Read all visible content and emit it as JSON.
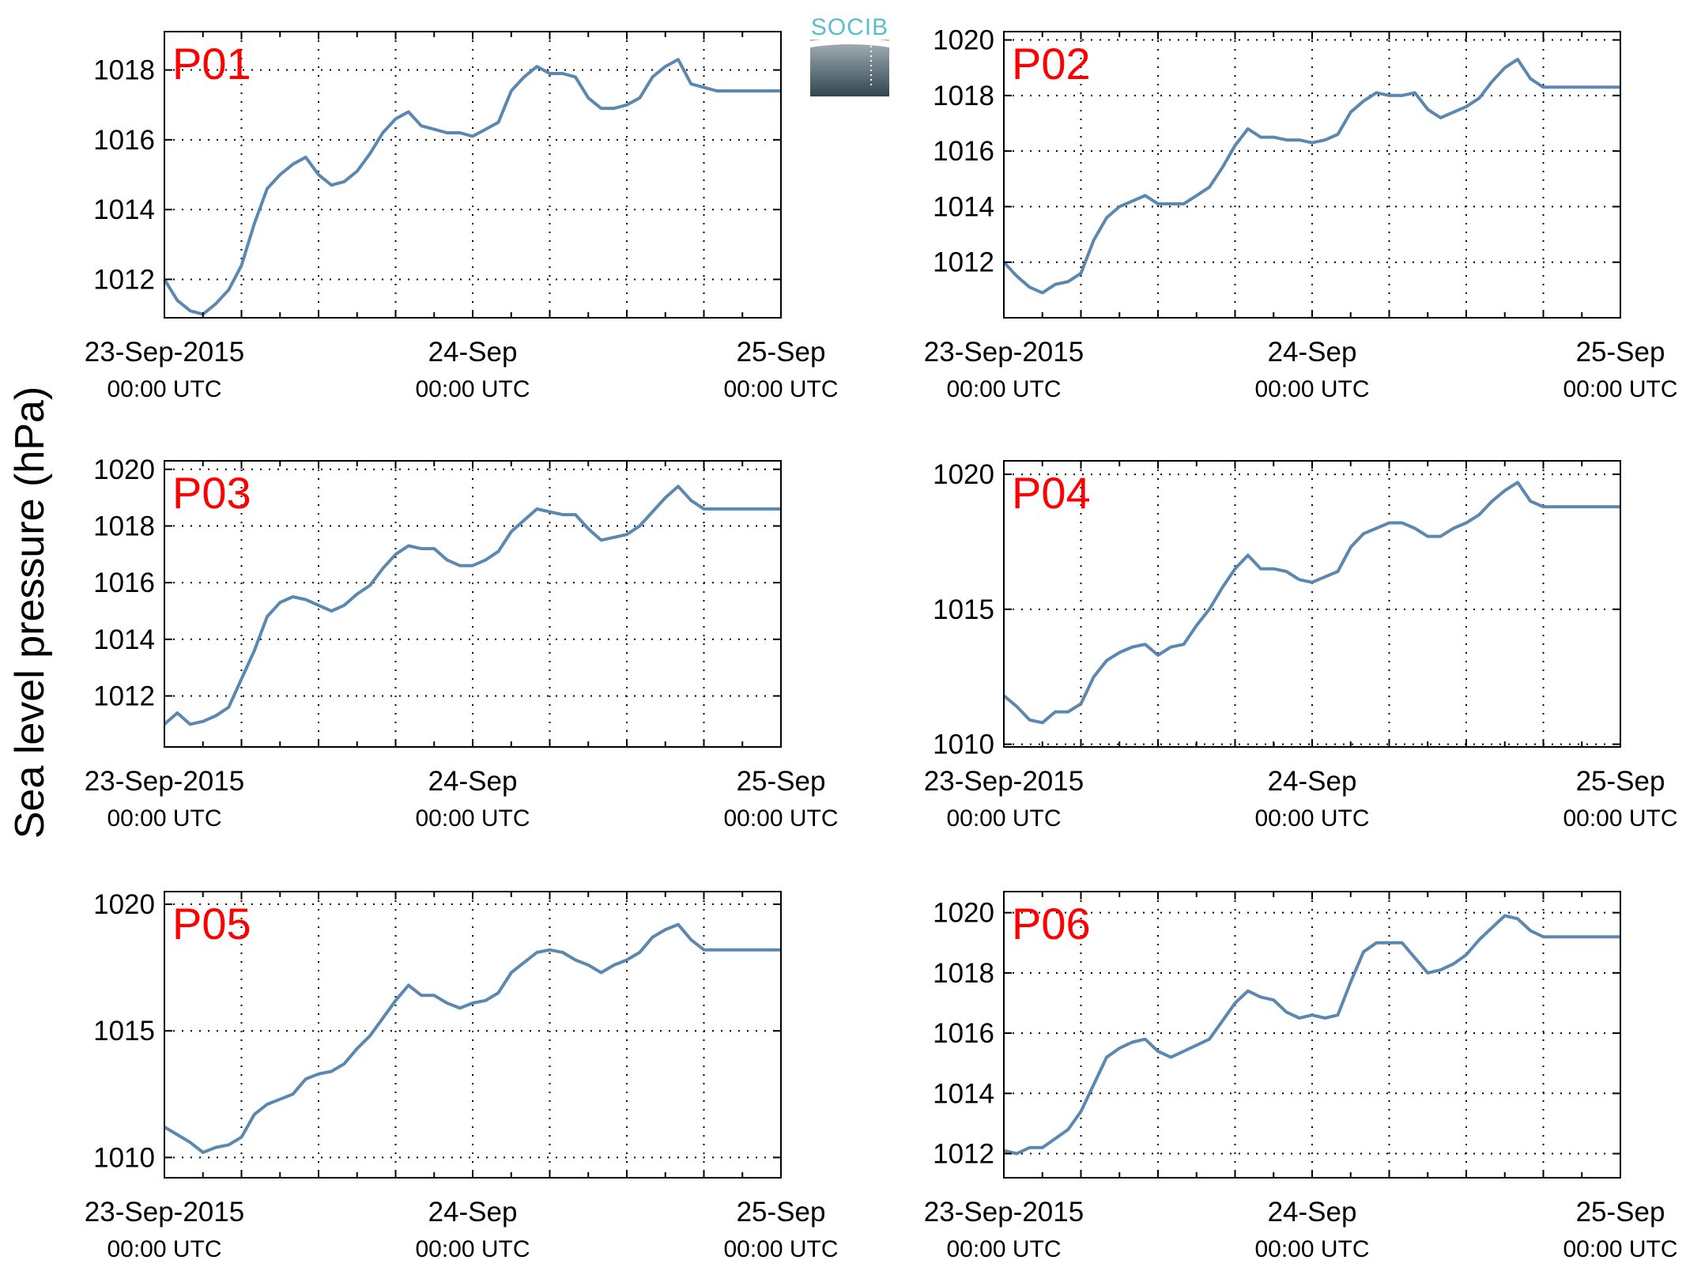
{
  "ylabel": "Sea level pressure (hPa)",
  "logo": {
    "text": "SOCIB",
    "text_color": "#5bbcd0",
    "gradient_top": "#a9b3b9",
    "gradient_bottom": "#2f4651"
  },
  "style": {
    "line_color": "#5b88b0",
    "label_color": "#ff0000",
    "grid": "dotted"
  },
  "x_ticks": [
    {
      "value": 0,
      "label": "23-Sep-2015",
      "sub": "00:00 UTC"
    },
    {
      "value": 24,
      "label": "24-Sep",
      "sub": "00:00 UTC"
    },
    {
      "value": 48,
      "label": "25-Sep",
      "sub": "00:00 UTC"
    }
  ],
  "chart_data": [
    {
      "type": "line",
      "panel": "P01",
      "x_unit": "hours since 23-Sep-2015 00:00 UTC",
      "xlim": [
        0,
        48
      ],
      "ylim": [
        1010.9,
        1019.1
      ],
      "yticks": [
        1012,
        1014,
        1016,
        1018
      ],
      "series": [
        {
          "x": [
            0,
            1,
            2,
            3,
            4,
            5,
            6,
            7,
            8,
            9,
            10,
            11,
            12,
            13,
            14,
            15,
            16,
            17,
            18,
            19,
            20,
            21,
            22,
            23,
            24,
            25,
            26,
            27,
            28,
            29,
            30,
            31,
            32,
            33,
            34,
            35,
            36,
            37,
            38,
            39,
            40,
            41,
            42,
            43,
            44,
            45,
            46,
            47,
            48
          ],
          "y": [
            1012.0,
            1011.4,
            1011.1,
            1011.0,
            1011.3,
            1011.7,
            1012.4,
            1013.6,
            1014.6,
            1015.0,
            1015.3,
            1015.5,
            1015.0,
            1014.7,
            1014.8,
            1015.1,
            1015.6,
            1016.2,
            1016.6,
            1016.8,
            1016.4,
            1016.3,
            1016.2,
            1016.2,
            1016.1,
            1016.3,
            1016.5,
            1017.4,
            1017.8,
            1018.1,
            1017.9,
            1017.9,
            1017.8,
            1017.2,
            1016.9,
            1016.9,
            1017.0,
            1017.2,
            1017.8,
            1018.1,
            1018.3,
            1017.6,
            1017.5,
            1017.4,
            1017.4,
            1017.4,
            1017.4,
            1017.4,
            1017.4
          ]
        }
      ]
    },
    {
      "type": "line",
      "panel": "P02",
      "x_unit": "hours since 23-Sep-2015 00:00 UTC",
      "xlim": [
        0,
        48
      ],
      "ylim": [
        1010.0,
        1020.3
      ],
      "yticks": [
        1012,
        1014,
        1016,
        1018,
        1020
      ],
      "series": [
        {
          "x": [
            0,
            1,
            2,
            3,
            4,
            5,
            6,
            7,
            8,
            9,
            10,
            11,
            12,
            13,
            14,
            15,
            16,
            17,
            18,
            19,
            20,
            21,
            22,
            23,
            24,
            25,
            26,
            27,
            28,
            29,
            30,
            31,
            32,
            33,
            34,
            35,
            36,
            37,
            38,
            39,
            40,
            41,
            42,
            43,
            44,
            45,
            46,
            47,
            48
          ],
          "y": [
            1012.0,
            1011.5,
            1011.1,
            1010.9,
            1011.2,
            1011.3,
            1011.6,
            1012.8,
            1013.6,
            1014.0,
            1014.2,
            1014.4,
            1014.1,
            1014.1,
            1014.1,
            1014.4,
            1014.7,
            1015.4,
            1016.2,
            1016.8,
            1016.5,
            1016.5,
            1016.4,
            1016.4,
            1016.3,
            1016.4,
            1016.6,
            1017.4,
            1017.8,
            1018.1,
            1018.0,
            1018.0,
            1018.1,
            1017.5,
            1017.2,
            1017.4,
            1017.6,
            1017.9,
            1018.5,
            1019.0,
            1019.3,
            1018.6,
            1018.3,
            1018.3,
            1018.3,
            1018.3,
            1018.3,
            1018.3,
            1018.3
          ]
        }
      ]
    },
    {
      "type": "line",
      "panel": "P03",
      "x_unit": "hours since 23-Sep-2015 00:00 UTC",
      "xlim": [
        0,
        48
      ],
      "ylim": [
        1010.2,
        1020.3
      ],
      "yticks": [
        1012,
        1014,
        1016,
        1018,
        1020
      ],
      "series": [
        {
          "x": [
            0,
            1,
            2,
            3,
            4,
            5,
            6,
            7,
            8,
            9,
            10,
            11,
            12,
            13,
            14,
            15,
            16,
            17,
            18,
            19,
            20,
            21,
            22,
            23,
            24,
            25,
            26,
            27,
            28,
            29,
            30,
            31,
            32,
            33,
            34,
            35,
            36,
            37,
            38,
            39,
            40,
            41,
            42,
            43,
            44,
            45,
            46,
            47,
            48
          ],
          "y": [
            1011.0,
            1011.4,
            1011.0,
            1011.1,
            1011.3,
            1011.6,
            1012.6,
            1013.6,
            1014.8,
            1015.3,
            1015.5,
            1015.4,
            1015.2,
            1015.0,
            1015.2,
            1015.6,
            1015.9,
            1016.5,
            1017.0,
            1017.3,
            1017.2,
            1017.2,
            1016.8,
            1016.6,
            1016.6,
            1016.8,
            1017.1,
            1017.8,
            1018.2,
            1018.6,
            1018.5,
            1018.4,
            1018.4,
            1017.9,
            1017.5,
            1017.6,
            1017.7,
            1018.0,
            1018.5,
            1019.0,
            1019.4,
            1018.9,
            1018.6,
            1018.6,
            1018.6,
            1018.6,
            1018.6,
            1018.6,
            1018.6
          ]
        }
      ]
    },
    {
      "type": "line",
      "panel": "P04",
      "x_unit": "hours since 23-Sep-2015 00:00 UTC",
      "xlim": [
        0,
        48
      ],
      "ylim": [
        1009.9,
        1020.5
      ],
      "yticks": [
        1010,
        1015,
        1020
      ],
      "series": [
        {
          "x": [
            0,
            1,
            2,
            3,
            4,
            5,
            6,
            7,
            8,
            9,
            10,
            11,
            12,
            13,
            14,
            15,
            16,
            17,
            18,
            19,
            20,
            21,
            22,
            23,
            24,
            25,
            26,
            27,
            28,
            29,
            30,
            31,
            32,
            33,
            34,
            35,
            36,
            37,
            38,
            39,
            40,
            41,
            42,
            43,
            44,
            45,
            46,
            47,
            48
          ],
          "y": [
            1011.8,
            1011.4,
            1010.9,
            1010.8,
            1011.2,
            1011.2,
            1011.5,
            1012.5,
            1013.1,
            1013.4,
            1013.6,
            1013.7,
            1013.3,
            1013.6,
            1013.7,
            1014.4,
            1015.0,
            1015.8,
            1016.5,
            1017.0,
            1016.5,
            1016.5,
            1016.4,
            1016.1,
            1016.0,
            1016.2,
            1016.4,
            1017.3,
            1017.8,
            1018.0,
            1018.2,
            1018.2,
            1018.0,
            1017.7,
            1017.7,
            1018.0,
            1018.2,
            1018.5,
            1019.0,
            1019.4,
            1019.7,
            1019.0,
            1018.8,
            1018.8,
            1018.8,
            1018.8,
            1018.8,
            1018.8,
            1018.8
          ]
        }
      ]
    },
    {
      "type": "line",
      "panel": "P05",
      "x_unit": "hours since 23-Sep-2015 00:00 UTC",
      "xlim": [
        0,
        48
      ],
      "ylim": [
        1009.2,
        1020.5
      ],
      "yticks": [
        1010,
        1015,
        1020
      ],
      "series": [
        {
          "x": [
            0,
            1,
            2,
            3,
            4,
            5,
            6,
            7,
            8,
            9,
            10,
            11,
            12,
            13,
            14,
            15,
            16,
            17,
            18,
            19,
            20,
            21,
            22,
            23,
            24,
            25,
            26,
            27,
            28,
            29,
            30,
            31,
            32,
            33,
            34,
            35,
            36,
            37,
            38,
            39,
            40,
            41,
            42,
            43,
            44,
            45,
            46,
            47,
            48
          ],
          "y": [
            1011.2,
            1010.9,
            1010.6,
            1010.2,
            1010.4,
            1010.5,
            1010.8,
            1011.7,
            1012.1,
            1012.3,
            1012.5,
            1013.1,
            1013.3,
            1013.4,
            1013.7,
            1014.3,
            1014.8,
            1015.5,
            1016.2,
            1016.8,
            1016.4,
            1016.4,
            1016.1,
            1015.9,
            1016.1,
            1016.2,
            1016.5,
            1017.3,
            1017.7,
            1018.1,
            1018.2,
            1018.1,
            1017.8,
            1017.6,
            1017.3,
            1017.6,
            1017.8,
            1018.1,
            1018.7,
            1019.0,
            1019.2,
            1018.6,
            1018.2,
            1018.2,
            1018.2,
            1018.2,
            1018.2,
            1018.2,
            1018.2
          ]
        }
      ]
    },
    {
      "type": "line",
      "panel": "P06",
      "x_unit": "hours since 23-Sep-2015 00:00 UTC",
      "xlim": [
        0,
        48
      ],
      "ylim": [
        1011.2,
        1020.7
      ],
      "yticks": [
        1012,
        1014,
        1016,
        1018,
        1020
      ],
      "series": [
        {
          "x": [
            0,
            1,
            2,
            3,
            4,
            5,
            6,
            7,
            8,
            9,
            10,
            11,
            12,
            13,
            14,
            15,
            16,
            17,
            18,
            19,
            20,
            21,
            22,
            23,
            24,
            25,
            26,
            27,
            28,
            29,
            30,
            31,
            32,
            33,
            34,
            35,
            36,
            37,
            38,
            39,
            40,
            41,
            42,
            43,
            44,
            45,
            46,
            47,
            48
          ],
          "y": [
            1012.1,
            1012.0,
            1012.2,
            1012.2,
            1012.5,
            1012.8,
            1013.4,
            1014.3,
            1015.2,
            1015.5,
            1015.7,
            1015.8,
            1015.4,
            1015.2,
            1015.4,
            1015.6,
            1015.8,
            1016.4,
            1017.0,
            1017.4,
            1017.2,
            1017.1,
            1016.7,
            1016.5,
            1016.6,
            1016.5,
            1016.6,
            1017.7,
            1018.7,
            1019.0,
            1019.0,
            1019.0,
            1018.5,
            1018.0,
            1018.1,
            1018.3,
            1018.6,
            1019.1,
            1019.5,
            1019.9,
            1019.8,
            1019.4,
            1019.2,
            1019.2,
            1019.2,
            1019.2,
            1019.2,
            1019.2,
            1019.2
          ]
        }
      ]
    }
  ]
}
